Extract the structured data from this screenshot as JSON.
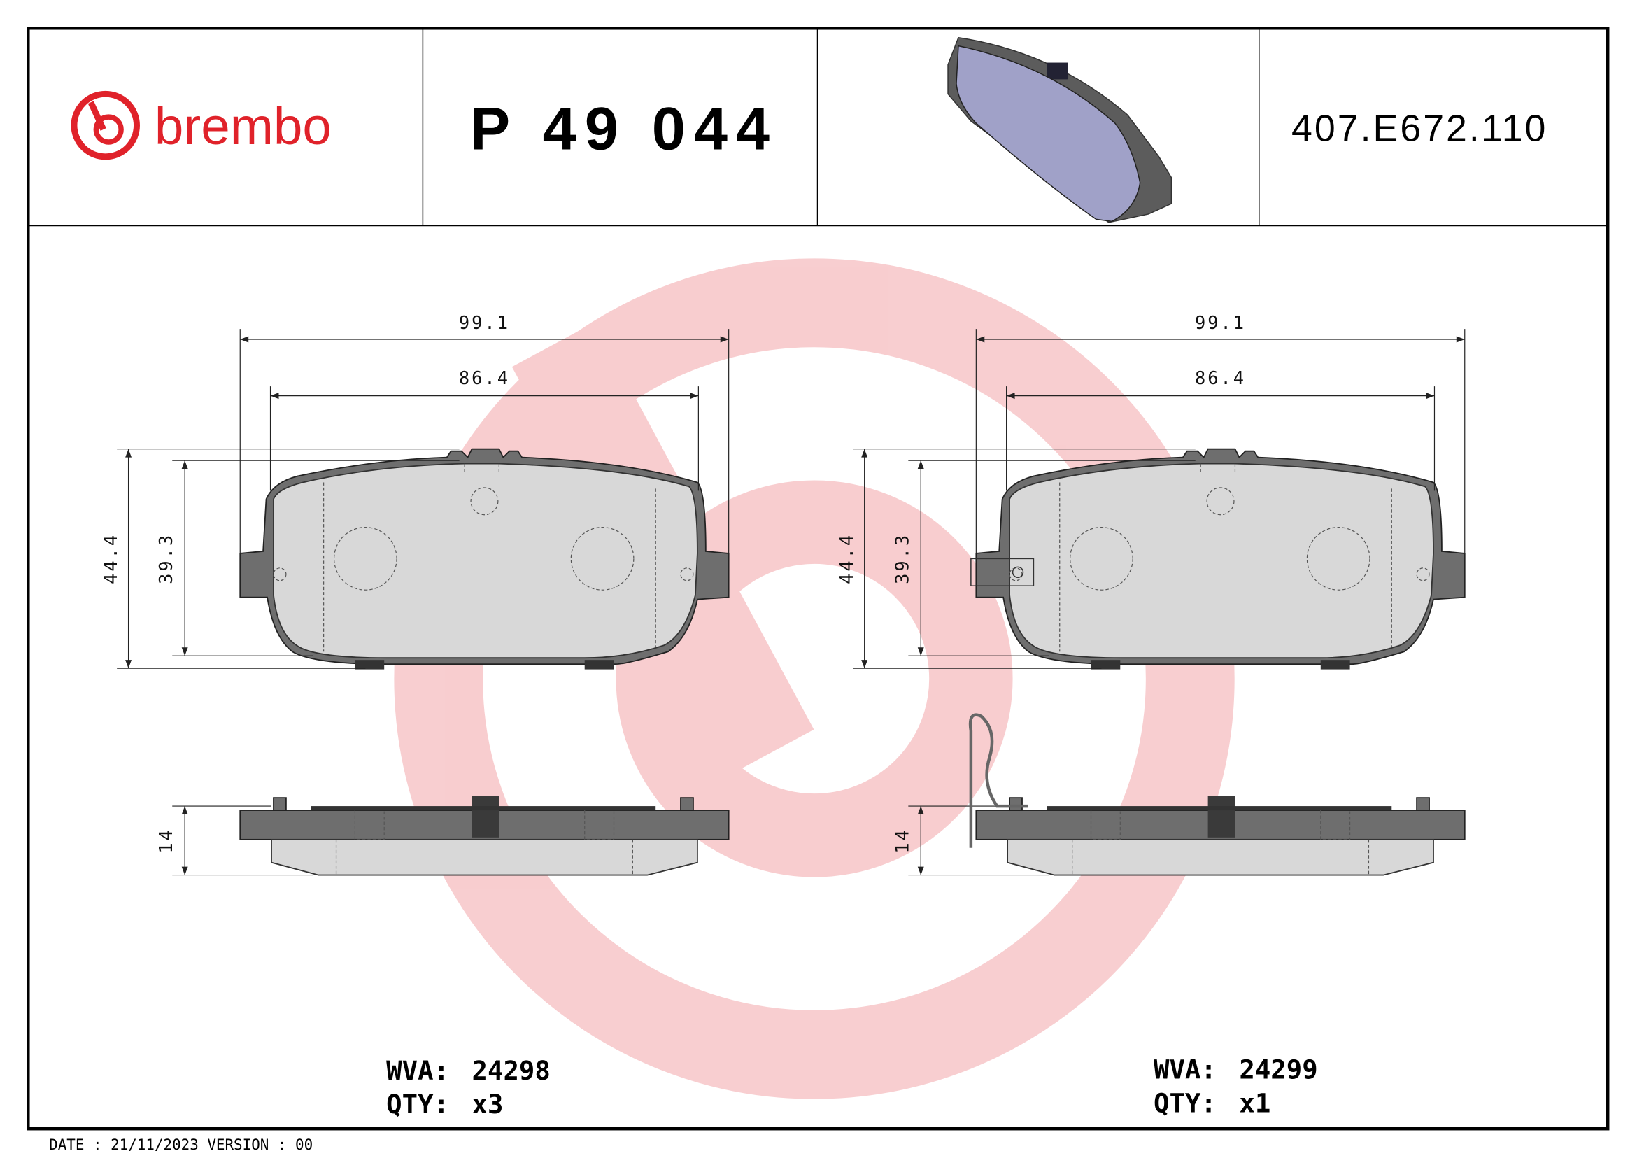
{
  "header": {
    "brand": "brembo",
    "part_number": "P 49 044",
    "code": "407.E672.110"
  },
  "brand_color": "#e0222a",
  "dimensions": {
    "left": {
      "width_outer": "99.1",
      "width_inner": "86.4",
      "height_outer": "44.4",
      "height_inner": "39.3",
      "thickness": "14"
    },
    "right": {
      "width_outer": "99.1",
      "width_inner": "86.4",
      "height_outer": "44.4",
      "height_inner": "39.3",
      "thickness": "14"
    }
  },
  "pads": [
    {
      "wva_label": "WVA:",
      "wva": "24298",
      "qty_label": "QTY:",
      "qty": "x3"
    },
    {
      "wva_label": "WVA:",
      "wva": "24299",
      "qty_label": "QTY:",
      "qty": "x1"
    }
  ],
  "footer": {
    "date": "DATE : 21/11/2023 VERSION : 00"
  }
}
